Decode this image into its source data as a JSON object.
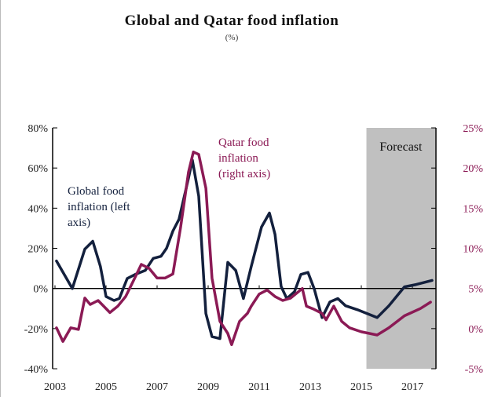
{
  "chart_data": {
    "type": "line",
    "title": "Global and Qatar food inflation",
    "subtitle": "(%)",
    "xlim": [
      2003,
      2017.9
    ],
    "x_ticks": [
      "2003",
      "2005",
      "2007",
      "2009",
      "2011",
      "2013",
      "2015",
      "2017"
    ],
    "y_left": {
      "ticks": [
        "80%",
        "60%",
        "40%",
        "20%",
        "0%",
        "-20%",
        "-40%"
      ],
      "range": [
        -40,
        80
      ]
    },
    "y_right": {
      "ticks": [
        "25%",
        "20%",
        "15%",
        "10%",
        "5%",
        "0%",
        "-5%"
      ],
      "range": [
        -5,
        25
      ]
    },
    "forecast": {
      "label": "Forecast",
      "start": 2015.2,
      "end": 2017.9,
      "color": "#c0c0c0"
    },
    "series": [
      {
        "name": "Global food inflation (left axis)",
        "label_lines": [
          "Global food",
          "inflation (left",
          "axis)"
        ],
        "axis": "left",
        "color": "#13203d",
        "x": [
          2003.06,
          2003.68,
          2004.17,
          2004.48,
          2004.78,
          2005.0,
          2005.31,
          2005.52,
          2005.83,
          2006.14,
          2006.54,
          2006.85,
          2007.15,
          2007.37,
          2007.62,
          2007.86,
          2008.23,
          2008.38,
          2008.63,
          2008.91,
          2009.15,
          2009.46,
          2009.77,
          2010.08,
          2010.38,
          2010.69,
          2011.09,
          2011.4,
          2011.62,
          2011.86,
          2012.08,
          2012.38,
          2012.63,
          2012.91,
          2013.15,
          2013.46,
          2013.77,
          2014.08,
          2014.38,
          2014.85,
          2015.62,
          2016.08,
          2016.69,
          2017.15,
          2017.77
        ],
        "y": [
          13.7,
          0,
          19.6,
          23.5,
          11,
          -4,
          -6,
          -5,
          5,
          7,
          9,
          15,
          16,
          20,
          28.6,
          34.5,
          55,
          64,
          46,
          -12.5,
          -24,
          -25,
          13,
          9,
          -5,
          11,
          30.6,
          37.6,
          27,
          1,
          -5,
          -1.6,
          7,
          8,
          0,
          -14.5,
          -6.7,
          -5,
          -8.6,
          -10.6,
          -14.5,
          -8.6,
          0.8,
          2,
          4
        ]
      },
      {
        "name": "Qatar food inflation (right axis)",
        "label_lines": [
          "Qatar food",
          "inflation",
          "(right axis)"
        ],
        "axis": "right",
        "color": "#8b1a55",
        "x": [
          2003.06,
          2003.31,
          2003.62,
          2003.92,
          2004.17,
          2004.38,
          2004.69,
          2005.15,
          2005.46,
          2005.77,
          2006.08,
          2006.38,
          2006.69,
          2007.0,
          2007.31,
          2007.62,
          2007.92,
          2008.23,
          2008.42,
          2008.63,
          2008.91,
          2009.15,
          2009.46,
          2009.77,
          2009.92,
          2010.23,
          2010.54,
          2010.69,
          2011.0,
          2011.31,
          2011.62,
          2011.92,
          2012.23,
          2012.69,
          2012.85,
          2013.15,
          2013.46,
          2013.62,
          2013.92,
          2014.23,
          2014.54,
          2015.0,
          2015.62,
          2016.08,
          2016.69,
          2017.31,
          2017.71
        ],
        "y": [
          0.1,
          -1.6,
          0.1,
          -0.1,
          3.8,
          3,
          3.5,
          2,
          2.8,
          4,
          6,
          8,
          7.5,
          6.3,
          6.3,
          6.8,
          12.6,
          19.5,
          22,
          21.7,
          17.5,
          6.3,
          0.9,
          -0.6,
          -2,
          0.9,
          1.9,
          2.8,
          4.3,
          4.8,
          4,
          3.5,
          3.8,
          5,
          2.8,
          2.4,
          1.9,
          1.1,
          2.8,
          0.9,
          0.1,
          -0.4,
          -0.8,
          0.1,
          1.6,
          2.5,
          3.3
        ]
      }
    ]
  }
}
